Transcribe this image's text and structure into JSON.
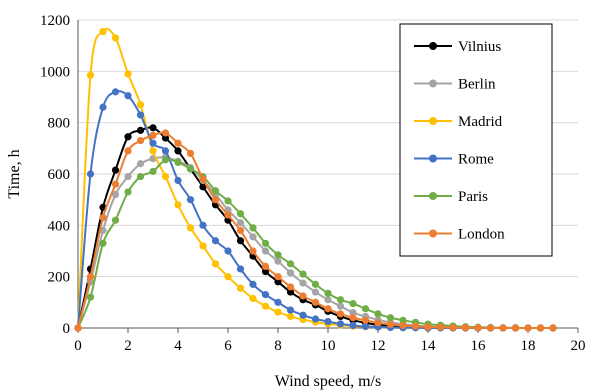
{
  "chart_data": {
    "type": "line",
    "xlabel": "Wind speed, m/s",
    "ylabel": "Time, h",
    "xlim": [
      0,
      20
    ],
    "ylim": [
      0,
      1200
    ],
    "xticks": [
      "0",
      "2",
      "4",
      "6",
      "8",
      "10",
      "12",
      "14",
      "16",
      "18",
      "20"
    ],
    "yticks": [
      "0",
      "200",
      "400",
      "600",
      "800",
      "1000",
      "1200"
    ],
    "grid": "horizontal",
    "legend_position": "top-right",
    "x": [
      0,
      0.5,
      1,
      1.5,
      2,
      2.5,
      3,
      3.5,
      4,
      4.5,
      5,
      5.5,
      6,
      6.5,
      7,
      7.5,
      8,
      8.5,
      9,
      9.5,
      10,
      10.5,
      11,
      11.5,
      12,
      12.5,
      13,
      13.5,
      14,
      14.5,
      15,
      15.5,
      16,
      16.5,
      17,
      17.5,
      18,
      18.5,
      19
    ],
    "series": [
      {
        "name": "Vilnius",
        "color": "#000000",
        "values": [
          0,
          230,
          470,
          615,
          745,
          770,
          780,
          740,
          690,
          620,
          550,
          480,
          420,
          340,
          280,
          220,
          180,
          140,
          110,
          90,
          65,
          45,
          30,
          20,
          12,
          8,
          5,
          3,
          2,
          1,
          1,
          0,
          0,
          0,
          0,
          0,
          0,
          0,
          0
        ]
      },
      {
        "name": "Berlin",
        "color": "#a5a5a5",
        "values": [
          0,
          180,
          380,
          520,
          590,
          640,
          660,
          665,
          650,
          625,
          575,
          520,
          460,
          410,
          355,
          300,
          260,
          215,
          175,
          140,
          110,
          85,
          60,
          45,
          32,
          22,
          15,
          10,
          6,
          4,
          3,
          2,
          1,
          0,
          0,
          0,
          0,
          0,
          0
        ]
      },
      {
        "name": "Madrid",
        "color": "#ffc000",
        "values": [
          0,
          985,
          1155,
          1130,
          990,
          870,
          690,
          590,
          480,
          390,
          320,
          250,
          200,
          155,
          115,
          85,
          62,
          45,
          33,
          23,
          16,
          11,
          7,
          5,
          3,
          2,
          1,
          1,
          0,
          0,
          0,
          0,
          0,
          0,
          0,
          0,
          0,
          0,
          0
        ]
      },
      {
        "name": "Rome",
        "color": "#4472c4",
        "values": [
          0,
          600,
          860,
          920,
          905,
          830,
          720,
          690,
          575,
          500,
          400,
          340,
          300,
          230,
          170,
          130,
          100,
          70,
          50,
          35,
          25,
          16,
          10,
          6,
          4,
          2,
          1,
          1,
          0,
          0,
          0,
          0,
          0,
          0,
          0,
          0,
          0,
          0,
          0
        ]
      },
      {
        "name": "Paris",
        "color": "#70ad47",
        "values": [
          0,
          120,
          330,
          420,
          530,
          590,
          610,
          655,
          645,
          620,
          590,
          535,
          495,
          445,
          390,
          330,
          285,
          250,
          210,
          170,
          135,
          110,
          95,
          75,
          55,
          40,
          30,
          22,
          15,
          11,
          8,
          5,
          3,
          2,
          1,
          1,
          0,
          0,
          0
        ]
      },
      {
        "name": "London",
        "color": "#ed7d31",
        "values": [
          0,
          200,
          430,
          560,
          690,
          730,
          750,
          760,
          720,
          680,
          580,
          500,
          440,
          380,
          300,
          240,
          200,
          160,
          125,
          100,
          75,
          55,
          40,
          30,
          20,
          14,
          10,
          7,
          4,
          3,
          2,
          1,
          1,
          0,
          0,
          0,
          0,
          0,
          0
        ]
      }
    ]
  }
}
